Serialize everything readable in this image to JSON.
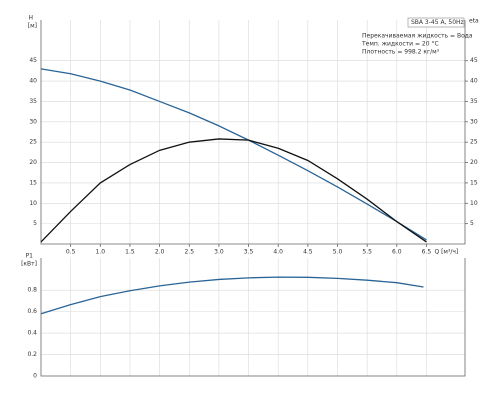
{
  "chart_data": [
    {
      "type": "line",
      "ylabel": "H",
      "yunit": "[м]",
      "y2label": "eta",
      "info_box": "SBA 3-45 A, 50Hz",
      "notes": [
        "Перекачиваемая жидкость = Вода",
        "Темп. жидкости = 20 °C",
        "Плотность = 998.2 кг/м³"
      ],
      "xlabel": "Q [м³/ч]",
      "x": [
        0,
        0.5,
        1,
        1.5,
        2,
        2.5,
        3,
        3.5,
        4,
        4.5,
        5,
        5.5,
        6,
        6.5
      ],
      "series": [
        {
          "color": "#2a6496",
          "values": [
            43,
            41.8,
            40,
            37.8,
            35,
            32.2,
            29,
            25.5,
            21.8,
            18,
            14,
            9.8,
            5.5,
            1
          ]
        },
        {
          "color": "#111111",
          "axis": "y2",
          "values": [
            0.5,
            8,
            15,
            19.5,
            23,
            25,
            25.8,
            25.5,
            23.5,
            20.5,
            16,
            11,
            5.5,
            0.5
          ]
        }
      ],
      "xlim": [
        0,
        7.15
      ],
      "xticks": [
        0.5,
        {
          "value": 1,
          "label": "1.0"
        },
        1.5,
        {
          "value": 2,
          "label": "2.0"
        },
        2.5,
        {
          "value": 3,
          "label": "3.0"
        },
        3.5,
        {
          "value": 4,
          "label": "4.0"
        },
        4.5,
        {
          "value": 5,
          "label": "5.0"
        },
        5.5,
        {
          "value": 6,
          "label": "6.0"
        },
        6.5
      ],
      "ylim": [
        0,
        55
      ],
      "yticks": [
        5,
        10,
        15,
        20,
        25,
        30,
        35,
        40,
        45
      ],
      "y2lim": [
        0,
        55
      ],
      "y2ticks": [
        5,
        10,
        15,
        20,
        25,
        30,
        35,
        40,
        45
      ],
      "grid": true
    },
    {
      "type": "line",
      "ylabel": "P1",
      "yunit": "[кВт]",
      "x": [
        0,
        0.5,
        1,
        1.5,
        2,
        2.5,
        3,
        3.5,
        4,
        4.5,
        5,
        5.5,
        6,
        6.45
      ],
      "series": [
        {
          "color": "#2a6496",
          "values": [
            0.58,
            0.665,
            0.74,
            0.795,
            0.84,
            0.875,
            0.9,
            0.915,
            0.922,
            0.92,
            0.91,
            0.893,
            0.87,
            0.83
          ]
        }
      ],
      "xlim": [
        0,
        7.15
      ],
      "ylim": [
        0,
        1.1
      ],
      "yticks": [
        0,
        0.2,
        0.4,
        0.6,
        0.8
      ],
      "grid": true
    }
  ]
}
